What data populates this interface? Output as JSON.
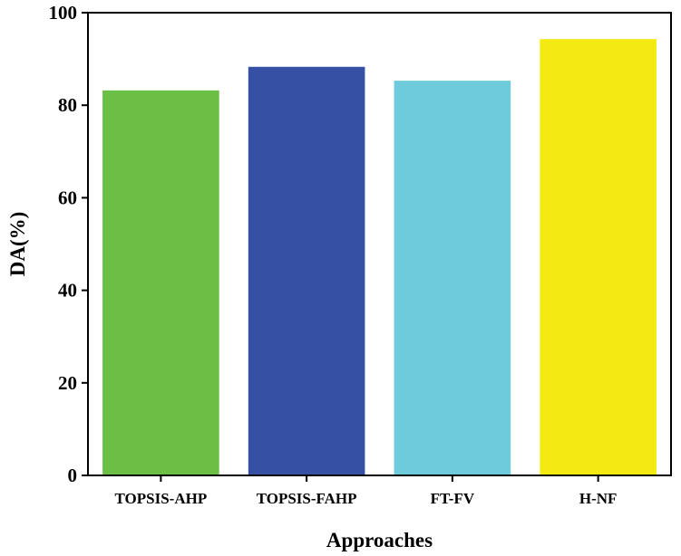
{
  "chart_data": {
    "type": "bar",
    "categories": [
      "TOPSIS-AHP",
      "TOPSIS-FAHP",
      "FT-FV",
      "H-NF"
    ],
    "values": [
      83.2,
      88.3,
      85.3,
      94.3
    ],
    "colors": [
      "#6bbf45",
      "#3651a4",
      "#6dcbdb",
      "#f4ea13"
    ],
    "title": "",
    "xlabel": "Approaches",
    "ylabel": "DA(%)",
    "ylim": [
      0,
      100
    ],
    "yticks": [
      0,
      20,
      40,
      60,
      80,
      100
    ],
    "grid": false,
    "legend": "none"
  }
}
